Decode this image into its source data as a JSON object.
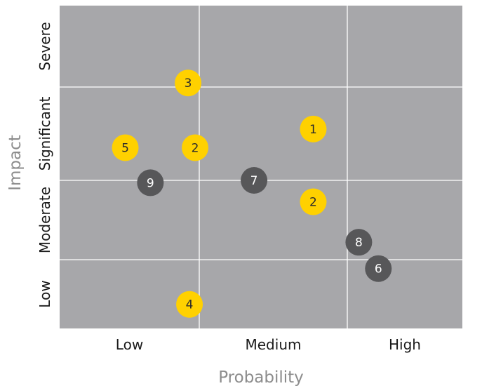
{
  "chart_data": {
    "type": "scatter",
    "xlabel": "Probability",
    "ylabel": "Impact",
    "x_categories": [
      "Low",
      "Medium",
      "High"
    ],
    "y_categories": [
      "Low",
      "Moderate",
      "Significant",
      "Severe"
    ],
    "xlim": [
      0,
      3
    ],
    "ylim": [
      0,
      4
    ],
    "grid": true,
    "colors": {
      "plot_background": "#a7a7aa",
      "grid": "#ffffff",
      "series_yellow": "#ffd100",
      "series_gray": "#575759",
      "yellow_text": "#2b2b2b",
      "gray_text": "#ffffff"
    },
    "points": [
      {
        "label": "3",
        "x": 0.92,
        "y": 3.05,
        "color": "yellow"
      },
      {
        "label": "1",
        "x": 1.77,
        "y": 2.55,
        "color": "yellow"
      },
      {
        "label": "5",
        "x": 0.47,
        "y": 2.35,
        "color": "yellow"
      },
      {
        "label": "2",
        "x": 0.97,
        "y": 2.35,
        "color": "yellow"
      },
      {
        "label": "9",
        "x": 0.65,
        "y": 1.97,
        "color": "gray"
      },
      {
        "label": "7",
        "x": 1.37,
        "y": 2.0,
        "color": "gray"
      },
      {
        "label": "2",
        "x": 1.77,
        "y": 1.73,
        "color": "yellow"
      },
      {
        "label": "8",
        "x": 2.1,
        "y": 1.22,
        "color": "gray"
      },
      {
        "label": "6",
        "x": 2.27,
        "y": 0.87,
        "color": "gray"
      },
      {
        "label": "4",
        "x": 0.93,
        "y": 0.35,
        "color": "yellow"
      }
    ]
  }
}
